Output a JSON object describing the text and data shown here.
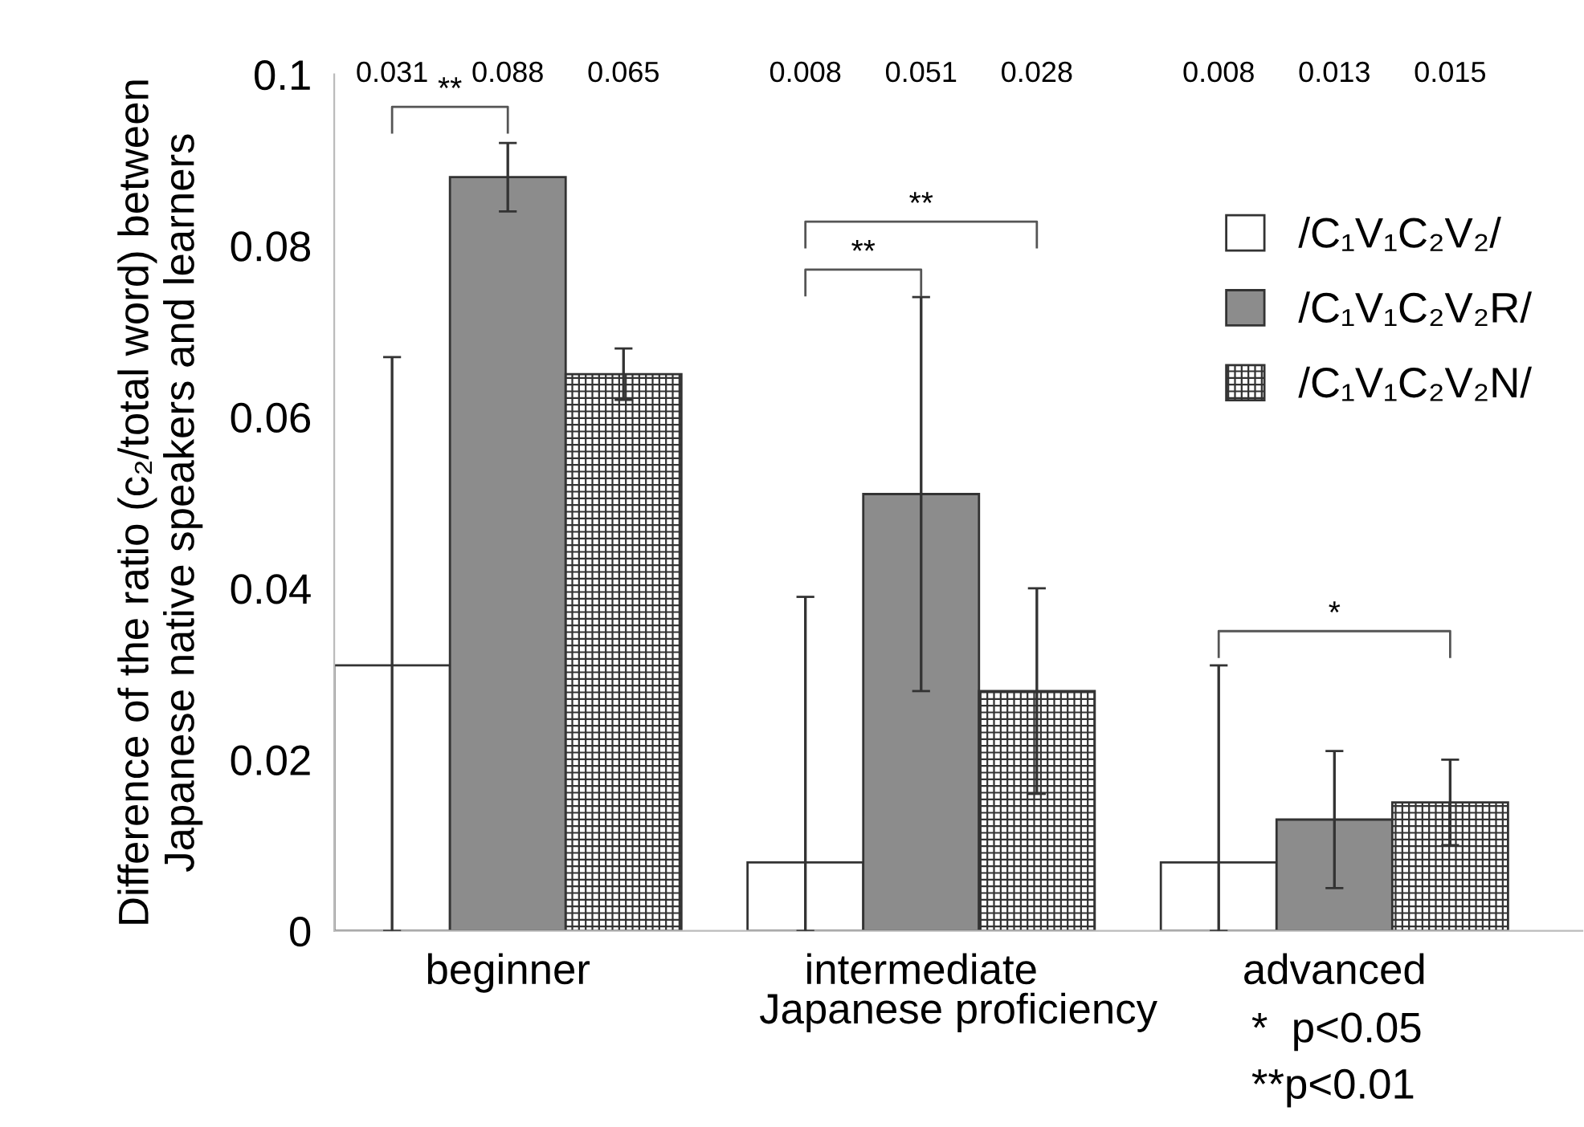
{
  "chart_data": {
    "type": "bar",
    "categories": [
      "beginner",
      "intermediate",
      "advanced"
    ],
    "xlabel": "Japanese proficiency",
    "ylabel": "Difference of the ratio (c₂/total word) between\nJapanese native speakers and learners",
    "ylim": [
      0,
      0.1
    ],
    "yticks": [
      0,
      0.02,
      0.04,
      0.06,
      0.08,
      0.1
    ],
    "series": [
      {
        "name": "/C₁V₁C₂V₂/",
        "color": "#ffffff",
        "values": [
          0.031,
          0.008,
          0.008
        ],
        "errors": [
          [
            0,
            0.067
          ],
          [
            0,
            0.039
          ],
          [
            0,
            0.031
          ]
        ]
      },
      {
        "name": "/C₁V₁C₂V₂R/",
        "color": "#8c8c8c",
        "values": [
          0.088,
          0.051,
          0.013
        ],
        "errors": [
          [
            0.084,
            0.092
          ],
          [
            0.028,
            0.074
          ],
          [
            0.005,
            0.021
          ]
        ]
      },
      {
        "name": "/C₁V₁C₂V₂N/",
        "color": "#333333",
        "values": [
          0.065,
          0.028,
          0.015
        ],
        "errors": [
          [
            0.062,
            0.068
          ],
          [
            0.016,
            0.04
          ],
          [
            0.01,
            0.02
          ]
        ]
      }
    ],
    "grid": false,
    "legend": "top right",
    "annotations": [
      "**",
      "**",
      "**",
      "*",
      "*  p<0.05",
      "**p<0.01",
      "0.031",
      "0.088",
      "0.065",
      "0.008",
      "0.051",
      "0.028",
      "0.008",
      "0.013",
      "0.015"
    ]
  }
}
